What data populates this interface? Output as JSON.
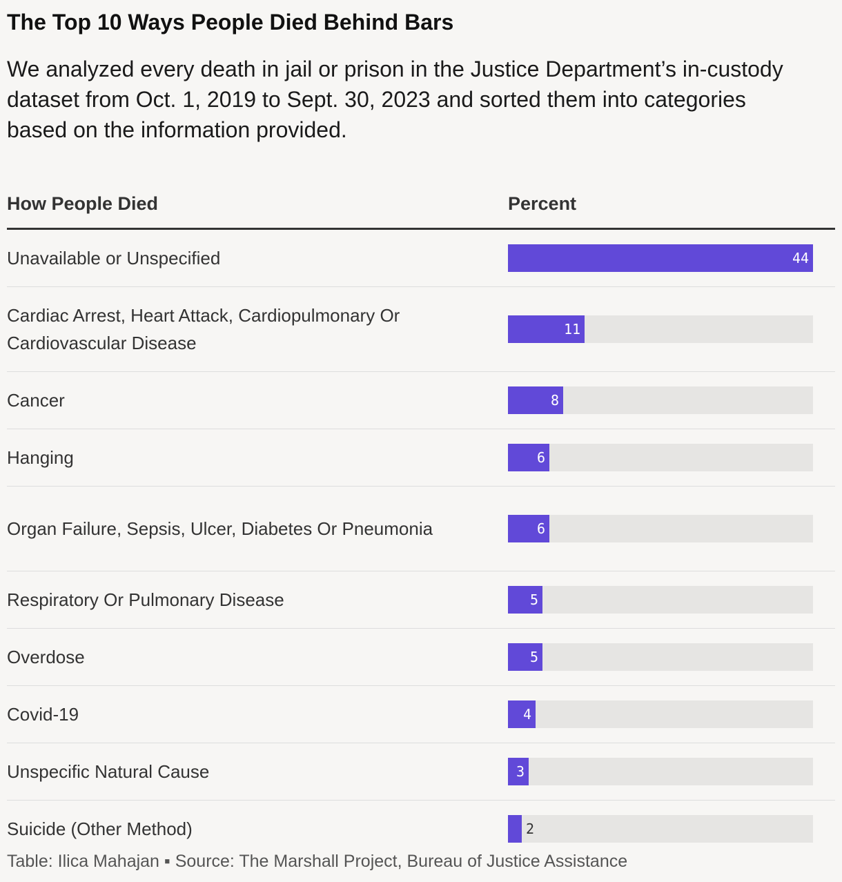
{
  "header": {
    "title": "The Top 10 Ways People Died Behind Bars",
    "subtitle": "We analyzed every death in jail or prison in the Justice Department’s in-custody dataset from Oct. 1, 2019 to Sept. 30, 2023 and sorted them into categories based on the information provided."
  },
  "table": {
    "col_cause": "How People Died",
    "col_percent": "Percent"
  },
  "footer": {
    "credit": "Table: Ilica Mahajan ▪ Source: The Marshall Project, Bureau of Justice Assistance"
  },
  "colors": {
    "bar": "#6149d8",
    "track": "#e6e5e3",
    "background": "#f7f6f4"
  },
  "chart_data": {
    "type": "table",
    "title": "The Top 10 Ways People Died Behind Bars",
    "columns": [
      "How People Died",
      "Percent"
    ],
    "xlim": [
      0,
      44
    ],
    "rows": [
      {
        "label": "Unavailable or Unspecified",
        "value": 44
      },
      {
        "label": "Cardiac Arrest, Heart Attack, Cardiopulmonary Or Cardiovascular Disease",
        "value": 11
      },
      {
        "label": "Cancer",
        "value": 8
      },
      {
        "label": "Hanging",
        "value": 6
      },
      {
        "label": "Organ Failure, Sepsis, Ulcer, Diabetes Or Pneumonia",
        "value": 6
      },
      {
        "label": "Respiratory Or Pulmonary Disease",
        "value": 5
      },
      {
        "label": "Overdose",
        "value": 5
      },
      {
        "label": "Covid-19",
        "value": 4
      },
      {
        "label": "Unspecific Natural Cause",
        "value": 3
      },
      {
        "label": "Suicide (Other Method)",
        "value": 2
      }
    ]
  }
}
